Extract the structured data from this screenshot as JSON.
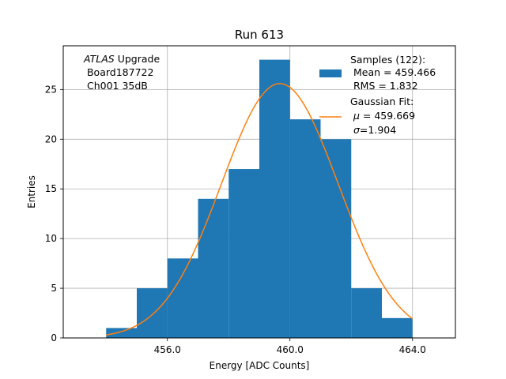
{
  "chart_data": {
    "type": "bar",
    "title": "Run 613",
    "xlabel": "Energy [ADC Counts]",
    "ylabel": "Entries",
    "xlim": [
      452.6,
      465.4
    ],
    "ylim": [
      0,
      29.4
    ],
    "xticks": [
      456.0,
      460.0,
      464.0
    ],
    "xtick_labels": [
      "456.0",
      "460.0",
      "464.0"
    ],
    "yticks": [
      0,
      5,
      10,
      15,
      20,
      25
    ],
    "yticks_labels": [
      "0",
      "5",
      "10",
      "15",
      "20",
      "25"
    ],
    "grid": true,
    "bin_edges": [
      454,
      455,
      456,
      457,
      458,
      459,
      460,
      461,
      462,
      463,
      464
    ],
    "counts": [
      1,
      5,
      8,
      14,
      17,
      28,
      22,
      20,
      5,
      2
    ],
    "hist_color": "#1f77b4",
    "fit": {
      "name": "Gaussian Fit",
      "mu": 459.669,
      "sigma": 1.904,
      "amplitude": 25.6,
      "x_range": [
        454,
        464
      ],
      "color": "#ff7f0e"
    },
    "annotation": {
      "italic": "ATLAS",
      "rest": " Upgrade",
      "line2": " Board187722",
      "line3": " Ch001 35dB"
    },
    "legend": {
      "placement": "top-right",
      "samples_line1": "Samples (122):",
      "samples_line2": " Mean = 459.466",
      "samples_line3": " RMS = 1.832",
      "fit_line1": "Gaussian Fit:",
      "fit_line2_symbol": "μ",
      "fit_line2_rest": " = 459.669",
      "fit_line3_symbol": "σ",
      "fit_line3_rest": "=1.904"
    }
  }
}
